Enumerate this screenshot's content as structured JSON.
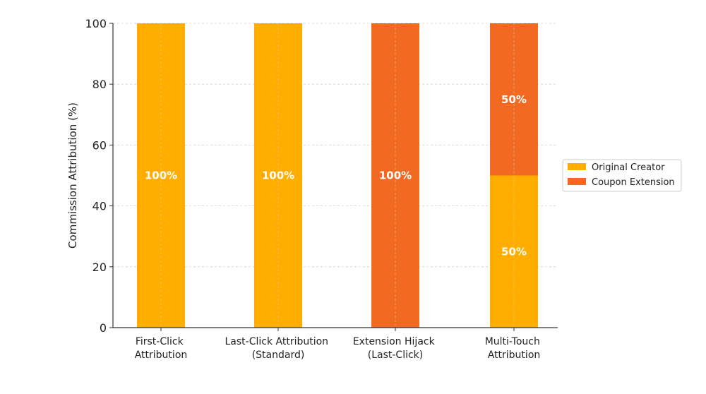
{
  "chart_data": {
    "type": "bar",
    "stacked": true,
    "title": "",
    "xlabel": "",
    "ylabel": "Commission Attribution (%)",
    "ylim": [
      0,
      100
    ],
    "yticks": [
      0,
      20,
      40,
      60,
      80,
      100
    ],
    "grid": true,
    "legend_position": "right",
    "categories": [
      "First-Click Attribution",
      "Last-Click Attribution (Standard)",
      "Extension Hijack (Last-Click)",
      "Multi-Touch Attribution"
    ],
    "series": [
      {
        "name": "Original Creator",
        "color": "#FFAE00",
        "values": [
          100,
          100,
          0,
          50
        ],
        "labels": [
          "100%",
          "100%",
          "",
          "50%"
        ]
      },
      {
        "name": "Coupon Extension",
        "color": "#F26A21",
        "values": [
          0,
          0,
          100,
          50
        ],
        "labels": [
          "",
          "",
          "100%",
          "50%"
        ]
      }
    ]
  }
}
